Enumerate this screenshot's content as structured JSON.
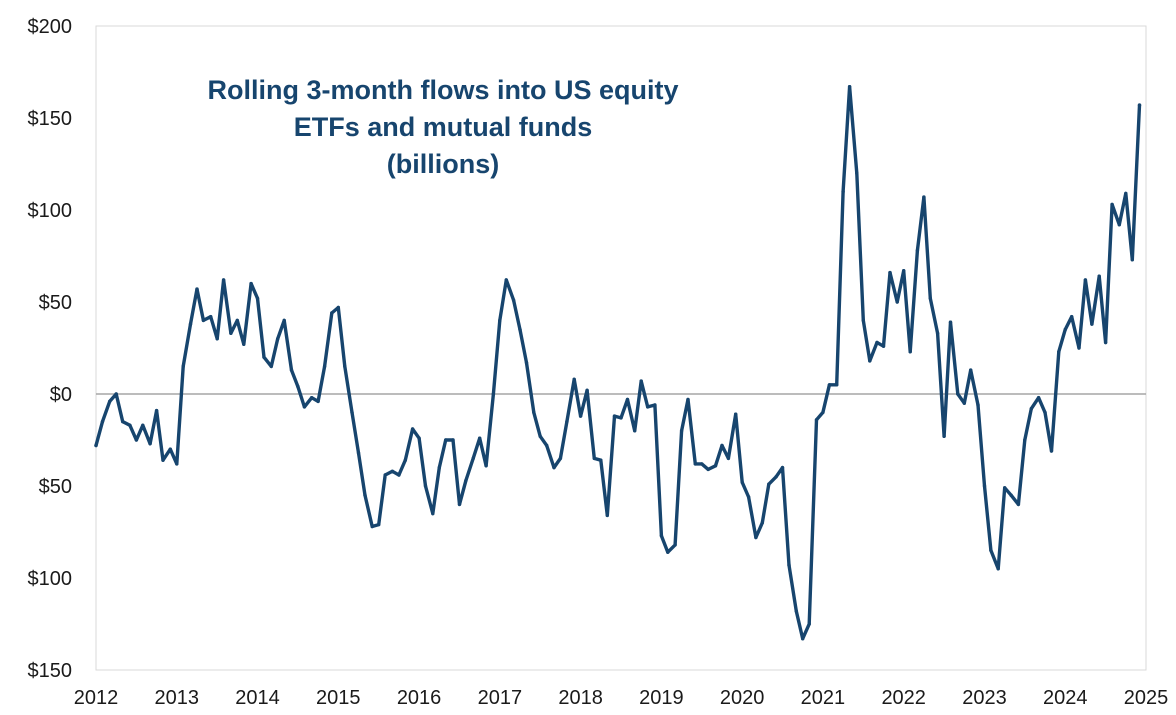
{
  "chart_data": {
    "type": "line",
    "title_lines": [
      "Rolling 3-month flows into US equity",
      "ETFs and mutual funds",
      "(billions)"
    ],
    "xlabel": "",
    "ylabel": "",
    "xlim": [
      2012,
      2025
    ],
    "ylim": [
      -150,
      200
    ],
    "x_ticks": [
      "2012",
      "2013",
      "2014",
      "2015",
      "2016",
      "2017",
      "2018",
      "2019",
      "2020",
      "2021",
      "2022",
      "2023",
      "2024",
      "2025"
    ],
    "y_ticks": [
      {
        "value": 200,
        "label": "$200"
      },
      {
        "value": 150,
        "label": "$150"
      },
      {
        "value": 100,
        "label": "$100"
      },
      {
        "value": 50,
        "label": "$50"
      },
      {
        "value": 0,
        "label": "$0"
      },
      {
        "value": -50,
        "label": "$50"
      },
      {
        "value": -100,
        "label": "$100"
      },
      {
        "value": -150,
        "label": "$150"
      }
    ],
    "zero_line": true,
    "grid": false,
    "legend": "none",
    "line_color": "#17456e",
    "series": [
      {
        "x": [
          2012.0,
          2012.08,
          2012.17,
          2012.25,
          2012.33,
          2012.42,
          2012.5,
          2012.58,
          2012.67,
          2012.75,
          2012.83,
          2012.92,
          2013.0,
          2013.08,
          2013.17,
          2013.25,
          2013.33,
          2013.42,
          2013.5,
          2013.58,
          2013.67,
          2013.75,
          2013.83,
          2013.92,
          2014.0,
          2014.08,
          2014.17,
          2014.25,
          2014.33,
          2014.42,
          2014.5,
          2014.58,
          2014.67,
          2014.75,
          2014.83,
          2014.92,
          2015.0,
          2015.08,
          2015.17,
          2015.25,
          2015.33,
          2015.42,
          2015.5,
          2015.58,
          2015.67,
          2015.75,
          2015.83,
          2015.92,
          2016.0,
          2016.08,
          2016.17,
          2016.25,
          2016.33,
          2016.42,
          2016.5,
          2016.58,
          2016.67,
          2016.75,
          2016.83,
          2016.92,
          2017.0,
          2017.08,
          2017.17,
          2017.25,
          2017.33,
          2017.42,
          2017.5,
          2017.58,
          2017.67,
          2017.75,
          2017.83,
          2017.92,
          2018.0,
          2018.08,
          2018.17,
          2018.25,
          2018.33,
          2018.42,
          2018.5,
          2018.58,
          2018.67,
          2018.75,
          2018.83,
          2018.92,
          2019.0,
          2019.08,
          2019.17,
          2019.25,
          2019.33,
          2019.42,
          2019.5,
          2019.58,
          2019.67,
          2019.75,
          2019.83,
          2019.92,
          2020.0,
          2020.08,
          2020.17,
          2020.25,
          2020.33,
          2020.42,
          2020.5,
          2020.58,
          2020.67,
          2020.75,
          2020.83,
          2020.92,
          2021.0,
          2021.08,
          2021.17,
          2021.25,
          2021.33,
          2021.42,
          2021.5,
          2021.58,
          2021.67,
          2021.75,
          2021.83,
          2021.92,
          2022.0,
          2022.08,
          2022.17,
          2022.25,
          2022.33,
          2022.42,
          2022.5,
          2022.58,
          2022.67,
          2022.75,
          2022.83,
          2022.92,
          2023.0,
          2023.08,
          2023.17,
          2023.25,
          2023.33,
          2023.42,
          2023.5,
          2023.58,
          2023.67,
          2023.75,
          2023.83,
          2023.92,
          2024.0,
          2024.08,
          2024.17,
          2024.25,
          2024.33,
          2024.42,
          2024.5,
          2024.58,
          2024.67,
          2024.75,
          2024.83,
          2024.92
        ],
        "values": [
          -28,
          -15,
          -4,
          0,
          -15,
          -17,
          -25,
          -17,
          -27,
          -9,
          -36,
          -30,
          -38,
          15,
          38,
          57,
          40,
          42,
          30,
          62,
          33,
          40,
          27,
          60,
          52,
          20,
          15,
          30,
          40,
          13,
          4,
          -7,
          -2,
          -4,
          15,
          44,
          47,
          15,
          -10,
          -32,
          -55,
          -72,
          -71,
          -44,
          -42,
          -44,
          -36,
          -19,
          -24,
          -50,
          -65,
          -40,
          -25,
          -25,
          -60,
          -47,
          -35,
          -24,
          -39,
          0,
          40,
          62,
          51,
          35,
          17,
          -10,
          -23,
          -28,
          -40,
          -35,
          -15,
          8,
          -12,
          2,
          -35,
          -36,
          -66,
          -12,
          -13,
          -3,
          -20,
          7,
          -7,
          -6,
          -77,
          -86,
          -82,
          -20,
          -3,
          -38,
          -38,
          -41,
          -39,
          -28,
          -35,
          -11,
          -48,
          -56,
          -78,
          -70,
          -49,
          -45,
          -40,
          -93,
          -118,
          -133,
          -125,
          -14,
          -10,
          5,
          5,
          110,
          167,
          120,
          40,
          18,
          28,
          26,
          66,
          50,
          67,
          23,
          78,
          107,
          52,
          33,
          -23,
          39,
          0,
          -5,
          13,
          -6,
          -50,
          -85,
          -95,
          -51,
          -55,
          -60,
          -25,
          -8,
          -2,
          -10,
          -31,
          23,
          35,
          42,
          25,
          62,
          38,
          64,
          28,
          103,
          92,
          109,
          73,
          157
        ]
      }
    ]
  }
}
